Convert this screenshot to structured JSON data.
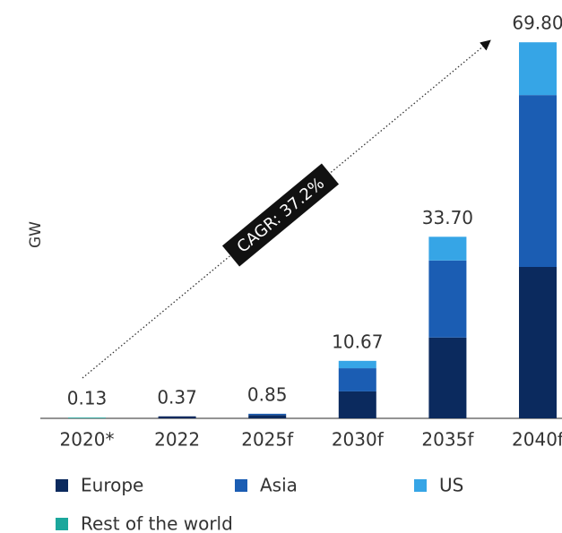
{
  "chart_data": {
    "type": "stacked_bar",
    "y_axis_label": "GW",
    "annotation": "CAGR: 37.2%",
    "categories": [
      "2020*",
      "2022",
      "2025f",
      "2030f",
      "2035f",
      "2040f"
    ],
    "series": [
      {
        "name": "Europe",
        "color": "#0b2a5e",
        "values": [
          0,
          0.37,
          0.6,
          5.0,
          15.0,
          28.1
        ]
      },
      {
        "name": "Asia",
        "color": "#1b5db3",
        "values": [
          0,
          0,
          0.25,
          4.3,
          14.3,
          31.9
        ]
      },
      {
        "name": "US",
        "color": "#36a5e6",
        "values": [
          0,
          0,
          0,
          1.37,
          4.4,
          9.8
        ]
      },
      {
        "name": "Rest of the world",
        "color": "#1ba79c",
        "values": [
          0.13,
          0,
          0,
          0,
          0,
          0
        ]
      }
    ],
    "totals": {
      "values": [
        0.13,
        0.37,
        0.85,
        10.67,
        33.7,
        69.8
      ],
      "value_labels": [
        "0.13",
        "0.37",
        "0.85",
        "10.67",
        "33.70",
        "69.80"
      ]
    },
    "ylim": [
      0,
      70
    ]
  }
}
